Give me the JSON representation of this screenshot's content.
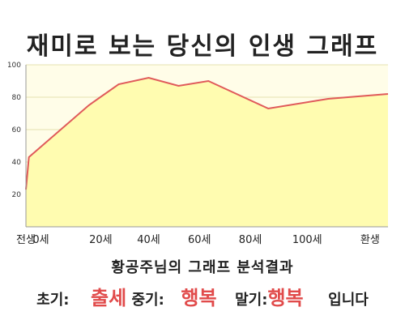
{
  "title": "재미로 보는 당신의 인생 그래프",
  "chart_data": {
    "type": "area",
    "x": [
      -1,
      0,
      20,
      30,
      40,
      50,
      60,
      80,
      100,
      120
    ],
    "y": [
      23,
      43,
      75,
      88,
      92,
      87,
      90,
      73,
      79,
      82
    ],
    "xlim": [
      -1,
      120
    ],
    "ylim": [
      0,
      100
    ],
    "x_ticks": [
      {
        "x": -1,
        "label": "전생"
      },
      {
        "x": 4,
        "label": "0세"
      },
      {
        "x": 24,
        "label": "20세"
      },
      {
        "x": 40,
        "label": "40세"
      },
      {
        "x": 57,
        "label": "60세"
      },
      {
        "x": 74,
        "label": "80세"
      },
      {
        "x": 93,
        "label": "100세"
      },
      {
        "x": 114,
        "label": "환생"
      }
    ],
    "y_ticks": [
      20,
      40,
      60,
      80,
      100
    ],
    "grid": true,
    "colors": {
      "line": "#e05a5a",
      "fill": "#fffcb0",
      "plot_bg": "#fffde8",
      "grid": "#e6e1b0"
    }
  },
  "result": {
    "title": "황공주님의 그래프 분석결과",
    "early_label": "초기:",
    "early_value": "출세",
    "mid_label": "중기:",
    "mid_value": "행복",
    "late_label": "말기:",
    "late_value": "행복",
    "ending": "입니다"
  }
}
